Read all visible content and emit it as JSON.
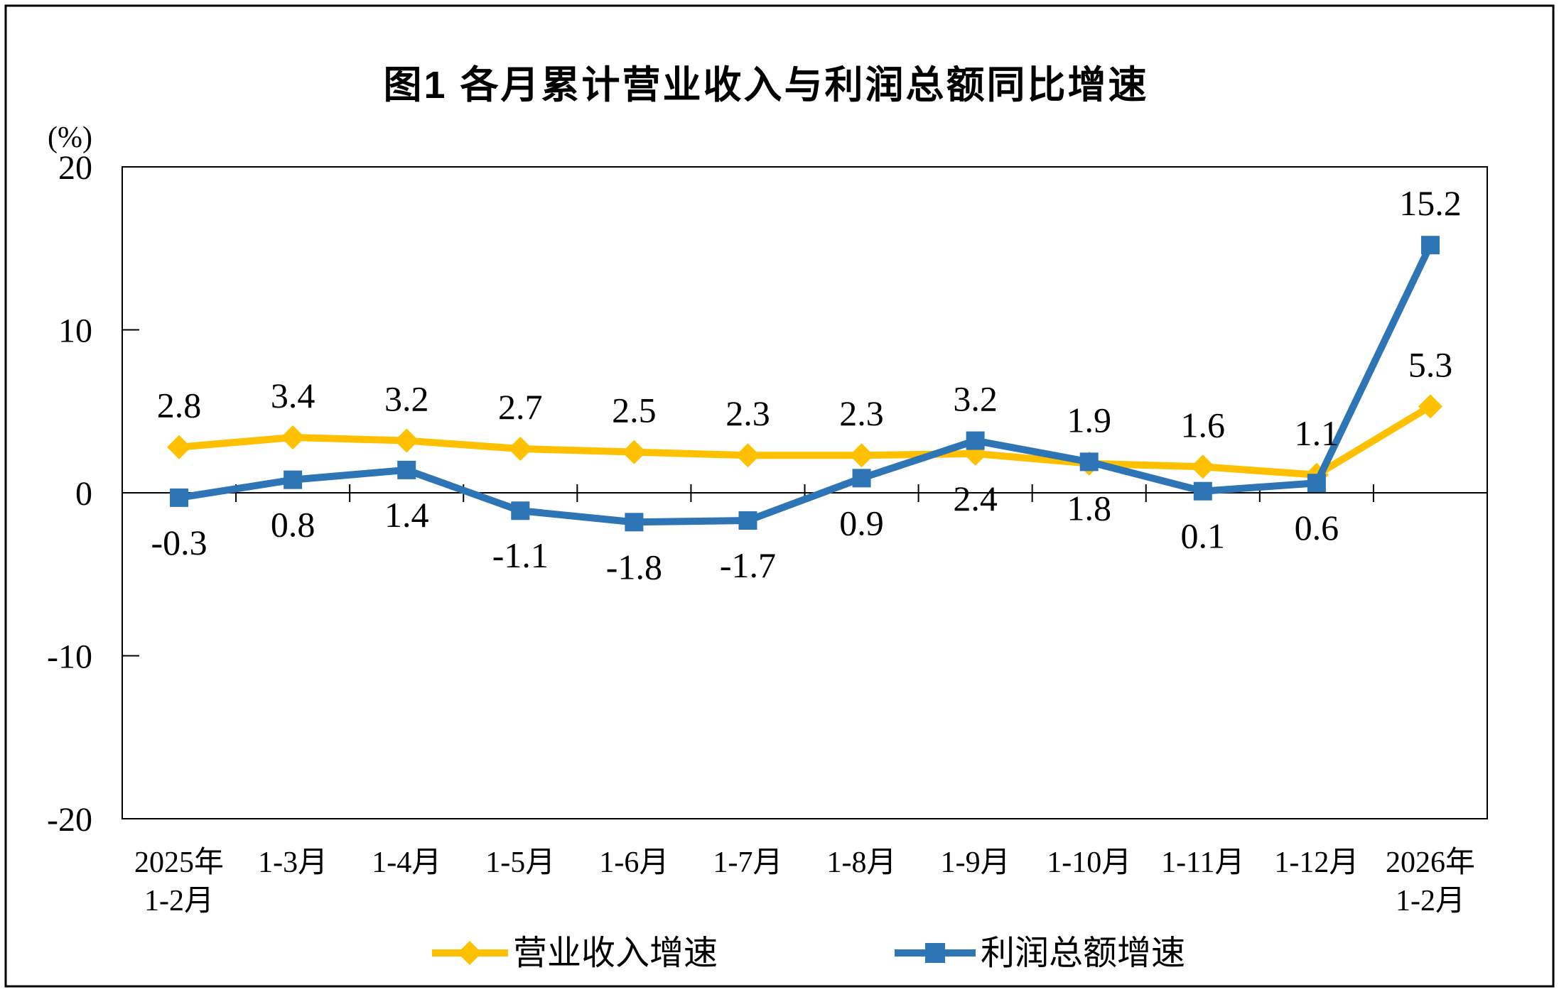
{
  "title": "图1  各月累计营业收入与利润总额同比增速",
  "axis_unit": "(%)",
  "chart_data": {
    "type": "line",
    "title": "图1  各月累计营业收入与利润总额同比增速",
    "categories": [
      "2025年\n1-2月",
      "1-3月",
      "1-4月",
      "1-5月",
      "1-6月",
      "1-7月",
      "1-8月",
      "1-9月",
      "1-10月",
      "1-11月",
      "1-12月",
      "2026年\n1-2月"
    ],
    "series": [
      {
        "name": "营业收入增速",
        "color": "#FFC000",
        "marker": "diamond",
        "values": [
          2.8,
          3.4,
          3.2,
          2.7,
          2.5,
          2.3,
          2.3,
          2.4,
          1.8,
          1.6,
          1.1,
          5.3
        ],
        "label_positions": [
          "above",
          "above",
          "above",
          "above",
          "above",
          "above",
          "above",
          "below",
          "below",
          "above",
          "above",
          "above"
        ]
      },
      {
        "name": "利润总额增速",
        "color": "#2E75B6",
        "marker": "square",
        "values": [
          -0.3,
          0.8,
          1.4,
          -1.1,
          -1.8,
          -1.7,
          0.9,
          3.2,
          1.9,
          0.1,
          0.6,
          15.2
        ],
        "label_positions": [
          "below",
          "below",
          "below",
          "below",
          "below",
          "below",
          "below",
          "above",
          "above",
          "below",
          "below",
          "above"
        ]
      }
    ],
    "xlabel": "",
    "ylabel": "(%)",
    "ylim": [
      -20,
      20
    ],
    "yticks": [
      20,
      10,
      0,
      -10,
      -20
    ],
    "grid": false,
    "legend_position": "bottom"
  }
}
